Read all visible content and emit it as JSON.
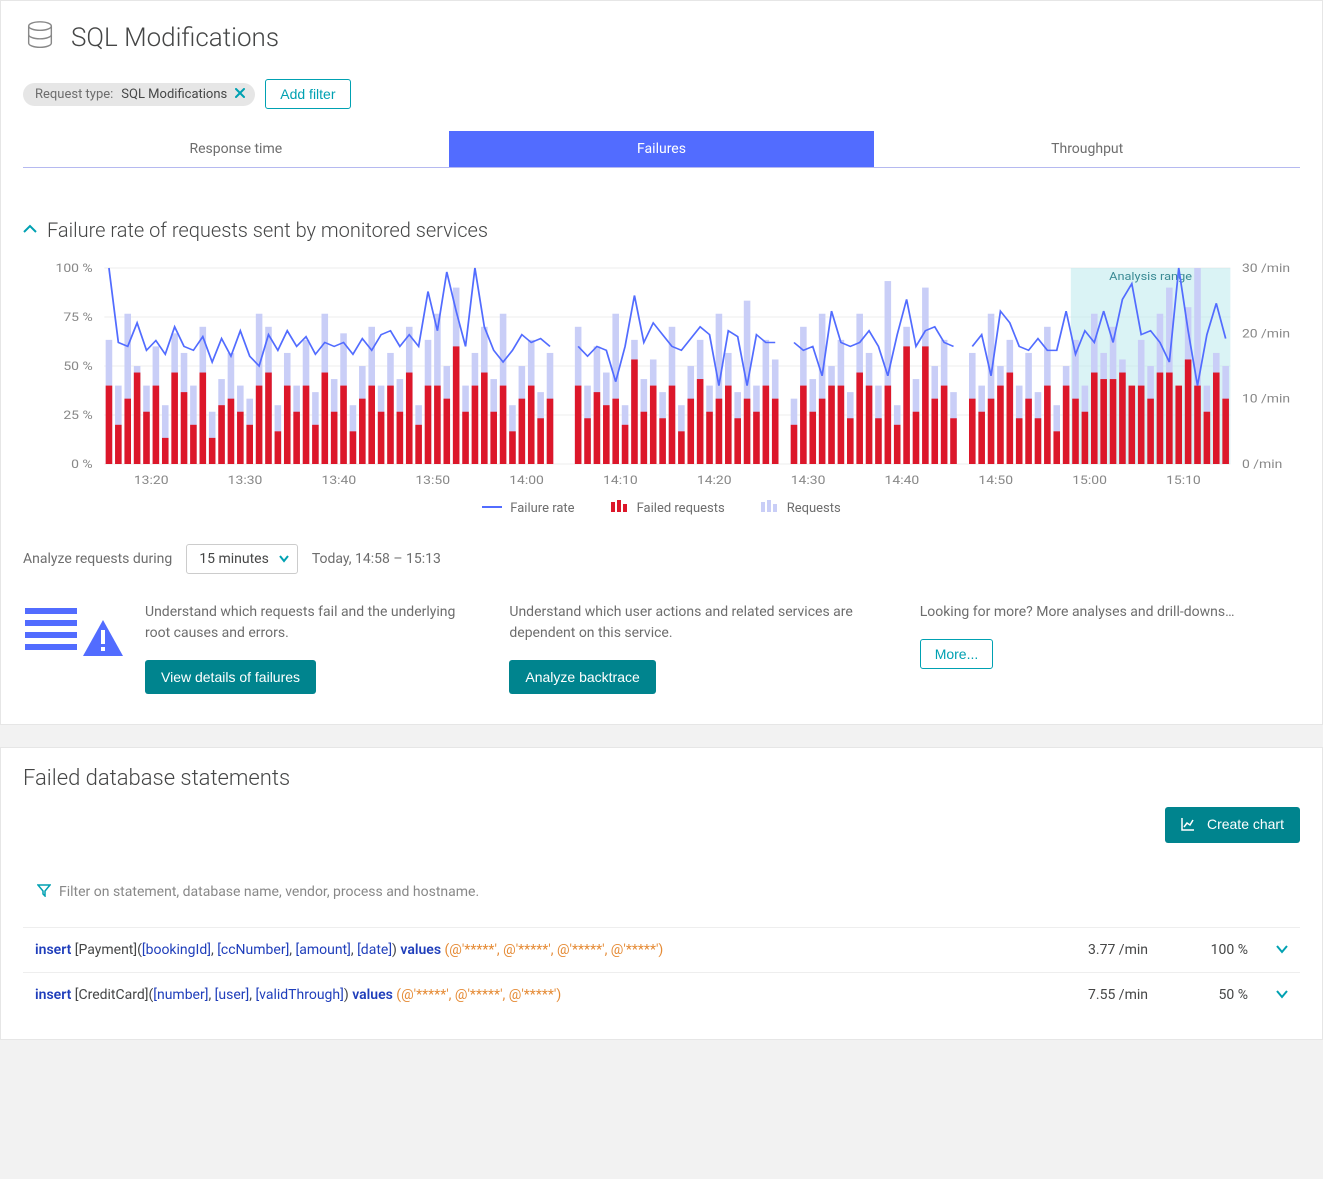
{
  "colors": {
    "accent": "#00a1b2",
    "accent_dark": "#00848e",
    "tab_active_bg": "#526cff",
    "line": "#526cff",
    "bar_requests": "#c9cef7",
    "bar_failed": "#dc172a",
    "text_muted": "#6d6d6d",
    "chip_bg": "#e6e6e6",
    "analysis_range_fill": "#b6e7ec",
    "analysis_range_opacity": 0.5,
    "grid": "#eeeeee",
    "kw": "#1f3ebb",
    "sql_values": "#e58b36"
  },
  "header": {
    "title": "SQL Modifications"
  },
  "filters": {
    "chip_prefix": "Request type:",
    "chip_value": "SQL Modifications",
    "add_filter_label": "Add filter"
  },
  "tabs": [
    {
      "label": "Response time",
      "active": false
    },
    {
      "label": "Failures",
      "active": true
    },
    {
      "label": "Throughput",
      "active": false
    }
  ],
  "section": {
    "title": "Failure rate of requests sent by monitored services"
  },
  "chart": {
    "y_left": {
      "min": 0,
      "max": 100,
      "ticks": [
        0,
        25,
        50,
        75,
        100
      ],
      "tick_labels": [
        "0 %",
        "25 %",
        "50 %",
        "75 %",
        "100 %"
      ]
    },
    "y_right": {
      "min": 0,
      "max": 30,
      "ticks": [
        0,
        10,
        20,
        30
      ],
      "tick_labels": [
        "0 /min",
        "10 /min",
        "20 /min",
        "30 /min"
      ]
    },
    "x_labels": [
      "13:20",
      "13:30",
      "13:40",
      "13:50",
      "14:00",
      "14:10",
      "14:20",
      "14:30",
      "14:40",
      "14:50",
      "15:00",
      "15:10"
    ],
    "bar_count": 120,
    "gaps": [
      48,
      49,
      72,
      91
    ],
    "analysis_range": {
      "start": 103,
      "end": 120,
      "label": "Analysis range"
    },
    "requests": [
      19,
      12,
      23,
      15,
      12,
      18,
      9,
      20,
      17,
      12,
      21,
      8,
      13,
      17,
      12,
      10,
      23,
      21,
      9,
      17,
      12,
      19,
      11,
      23,
      13,
      20,
      9,
      15,
      21,
      12,
      17,
      13,
      21,
      9,
      19,
      23,
      15,
      27,
      12,
      17,
      21,
      13,
      23,
      9,
      15,
      19,
      11,
      17,
      0,
      0,
      21,
      12,
      18,
      14,
      23,
      9,
      19,
      13,
      16,
      11,
      21,
      9,
      15,
      19,
      12,
      23,
      17,
      11,
      25,
      12,
      19,
      16,
      0,
      10,
      21,
      13,
      23,
      15,
      19,
      11,
      23,
      17,
      12,
      28,
      9,
      21,
      13,
      27,
      15,
      19,
      11,
      0,
      17,
      12,
      23,
      15,
      19,
      12,
      17,
      11,
      21,
      9,
      15,
      19,
      12,
      23,
      17,
      21,
      16,
      12,
      19,
      15,
      23,
      27,
      9,
      24,
      30,
      12,
      17,
      15
    ],
    "failed": [
      12,
      6,
      10,
      14,
      8,
      12,
      4,
      14,
      11,
      6,
      14,
      4,
      9,
      10,
      8,
      6,
      12,
      14,
      5,
      12,
      8,
      12,
      6,
      14,
      8,
      12,
      5,
      10,
      12,
      8,
      12,
      8,
      14,
      6,
      12,
      12,
      10,
      18,
      8,
      12,
      14,
      8,
      12,
      5,
      10,
      12,
      7,
      10,
      0,
      0,
      12,
      7,
      11,
      9,
      10,
      6,
      16,
      8,
      12,
      7,
      12,
      5,
      10,
      13,
      8,
      10,
      12,
      7,
      10,
      8,
      12,
      10,
      0,
      6,
      12,
      8,
      10,
      12,
      12,
      7,
      14,
      12,
      7,
      12,
      6,
      18,
      8,
      18,
      10,
      12,
      7,
      0,
      10,
      8,
      10,
      12,
      14,
      7,
      10,
      7,
      12,
      5,
      12,
      10,
      8,
      14,
      13,
      13,
      14,
      12,
      12,
      10,
      14,
      14,
      12,
      16,
      12,
      8,
      14,
      10
    ],
    "line": [
      100,
      62,
      60,
      72,
      58,
      63,
      56,
      70,
      60,
      58,
      65,
      52,
      64,
      55,
      68,
      55,
      50,
      66,
      58,
      68,
      60,
      65,
      56,
      62,
      60,
      62,
      56,
      64,
      58,
      66,
      68,
      60,
      66,
      60,
      88,
      68,
      98,
      78,
      60,
      100,
      70,
      58,
      52,
      58,
      66,
      62,
      64,
      60,
      70,
      70,
      60,
      55,
      60,
      58,
      42,
      60,
      86,
      62,
      72,
      66,
      60,
      58,
      64,
      70,
      66,
      40,
      68,
      65,
      40,
      66,
      62,
      62,
      70,
      62,
      58,
      60,
      45,
      78,
      62,
      60,
      62,
      68,
      60,
      45,
      66,
      84,
      60,
      68,
      70,
      62,
      60,
      70,
      60,
      66,
      45,
      78,
      72,
      60,
      58,
      64,
      58,
      58,
      78,
      56,
      68,
      62,
      78,
      62,
      84,
      92,
      66,
      68,
      62,
      52,
      100,
      68,
      40,
      66,
      82,
      64
    ],
    "legend": [
      {
        "label": "Failure rate",
        "type": "line",
        "color": "#526cff"
      },
      {
        "label": "Failed requests",
        "type": "bar",
        "color": "#dc172a"
      },
      {
        "label": "Requests",
        "type": "bar",
        "color": "#c9cef7"
      }
    ]
  },
  "analyze": {
    "prefix": "Analyze requests during",
    "select_value": "15 minutes",
    "range_text": "Today, 14:58 – 15:13"
  },
  "info": [
    {
      "text": "Understand which requests fail and the underlying root causes and errors.",
      "button": "View details of failures"
    },
    {
      "text": "Understand which user actions and related services are dependent on this service.",
      "button": "Analyze backtrace"
    },
    {
      "text": "Looking for more? More analyses and drill-downs…",
      "button": "More...",
      "outline": true
    }
  ],
  "statements": {
    "title": "Failed database statements",
    "create_chart_label": "Create chart",
    "filter_hint": "Filter on statement, database name, vendor, process and hostname.",
    "rows": [
      {
        "tokens": [
          {
            "t": "kw",
            "v": "insert "
          },
          {
            "t": "plain",
            "v": "[Payment]("
          },
          {
            "t": "br",
            "v": "[bookingId]"
          },
          {
            "t": "plain",
            "v": ", "
          },
          {
            "t": "br",
            "v": "[ccNumber]"
          },
          {
            "t": "plain",
            "v": ", "
          },
          {
            "t": "br",
            "v": "[amount]"
          },
          {
            "t": "plain",
            "v": ", "
          },
          {
            "t": "br",
            "v": "[date]"
          },
          {
            "t": "plain",
            "v": ") "
          },
          {
            "t": "kw",
            "v": "values "
          },
          {
            "t": "vals",
            "v": "(@'*****', @'*****', @'*****', @'*****')"
          }
        ],
        "rate": "3.77 /min",
        "pct": "100 %"
      },
      {
        "tokens": [
          {
            "t": "kw",
            "v": "insert "
          },
          {
            "t": "plain",
            "v": "[CreditCard]("
          },
          {
            "t": "br",
            "v": "[number]"
          },
          {
            "t": "plain",
            "v": ", "
          },
          {
            "t": "br",
            "v": "[user]"
          },
          {
            "t": "plain",
            "v": ", "
          },
          {
            "t": "br",
            "v": "[validThrough]"
          },
          {
            "t": "plain",
            "v": ") "
          },
          {
            "t": "kw",
            "v": "values "
          },
          {
            "t": "vals",
            "v": "(@'*****', @'*****', @'*****')"
          }
        ],
        "rate": "7.55 /min",
        "pct": "50 %"
      }
    ]
  }
}
